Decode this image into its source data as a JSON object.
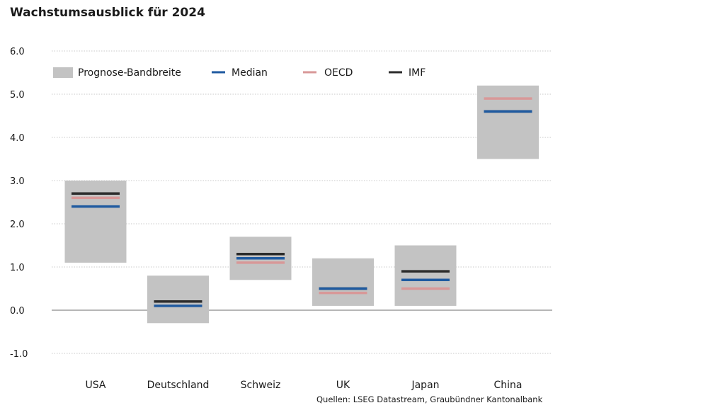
{
  "title": "Wachstumsausblick für 2024",
  "source": "Quellen: LSEG Datastream, Graubündner Kantonalbank",
  "colors": {
    "band": "#c3c3c3",
    "median": "#1f5aa0",
    "oecd": "#d89898",
    "imf": "#2b2b2b",
    "grid": "#c8c8c8",
    "zero_line": "#8a8a8a"
  },
  "legend": {
    "band": "Prognose-Bandbreite",
    "median": "Median",
    "oecd": "OECD",
    "imf": "IMF",
    "position": "top-left"
  },
  "chart_data": {
    "type": "bar",
    "title": "Wachstumsausblick für 2024",
    "xlabel": "",
    "ylabel": "",
    "ylim": [
      -1.0,
      6.0
    ],
    "yticks": [
      "6.0",
      "5.0",
      "4.0",
      "3.0",
      "2.0",
      "1.0",
      "0.0",
      "-1.0"
    ],
    "ytick_values": [
      6.0,
      5.0,
      4.0,
      3.0,
      2.0,
      1.0,
      0.0,
      -1.0
    ],
    "grid": "horizontal dotted",
    "categories": [
      "USA",
      "Deutschland",
      "Schweiz",
      "UK",
      "Japan",
      "China"
    ],
    "series": [
      {
        "name": "Prognose-Bandbreite",
        "kind": "range",
        "low": [
          1.1,
          -0.3,
          0.7,
          0.1,
          0.1,
          3.5
        ],
        "high": [
          3.0,
          0.8,
          1.7,
          1.2,
          1.5,
          5.2
        ]
      },
      {
        "name": "Median",
        "values": [
          2.4,
          0.1,
          1.2,
          0.5,
          0.7,
          4.6
        ]
      },
      {
        "name": "OECD",
        "values": [
          2.6,
          0.2,
          1.1,
          0.4,
          0.5,
          4.9
        ]
      },
      {
        "name": "IMF",
        "values": [
          2.7,
          0.2,
          1.3,
          0.5,
          0.9,
          4.6
        ]
      }
    ]
  }
}
